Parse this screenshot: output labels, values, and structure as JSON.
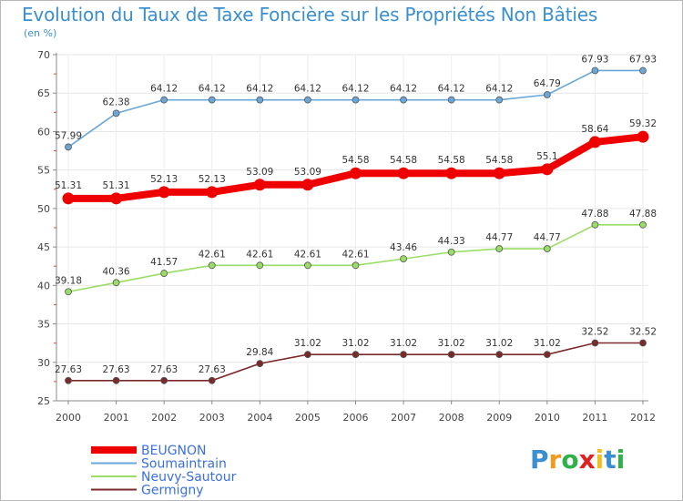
{
  "chart_data": {
    "type": "line",
    "title": "Evolution du Taux de Taxe Foncière sur les Propriétés Non Bâties",
    "ylabel": "(en %)",
    "xlabel": "",
    "ylim": [
      25,
      70
    ],
    "yticks": [
      25,
      30,
      35,
      40,
      45,
      50,
      55,
      60,
      65,
      70
    ],
    "x": [
      "2000",
      "2001",
      "2002",
      "2003",
      "2004",
      "2005",
      "2006",
      "2007",
      "2008",
      "2009",
      "2010",
      "2011",
      "2012"
    ],
    "series": [
      {
        "name": "BEUGNON",
        "color": "#ee0000",
        "emphasis": true,
        "values": [
          51.31,
          51.31,
          52.13,
          52.13,
          53.09,
          53.09,
          54.58,
          54.58,
          54.58,
          54.58,
          55.1,
          58.64,
          59.32
        ],
        "labels": [
          "51.31",
          "51.31",
          "52.13",
          "52.13",
          "53.09",
          "53.09",
          "54.58",
          "54.58",
          "54.58",
          "54.58",
          "55.1",
          "58.64",
          "59.32"
        ]
      },
      {
        "name": "Soumaintrain",
        "color": "#6aa6d6",
        "emphasis": false,
        "values": [
          57.99,
          62.38,
          64.12,
          64.12,
          64.12,
          64.12,
          64.12,
          64.12,
          64.12,
          64.12,
          64.79,
          67.93,
          67.93
        ],
        "labels": [
          "57.99",
          "62.38",
          "64.12",
          "64.12",
          "64.12",
          "64.12",
          "64.12",
          "64.12",
          "64.12",
          "64.12",
          "64.79",
          "67.93",
          "67.93"
        ]
      },
      {
        "name": "Neuvy-Sautour",
        "color": "#99dd66",
        "emphasis": false,
        "values": [
          39.18,
          40.36,
          41.57,
          42.61,
          42.61,
          42.61,
          42.61,
          43.46,
          44.33,
          44.77,
          44.77,
          47.88,
          47.88
        ],
        "labels": [
          "39.18",
          "40.36",
          "41.57",
          "42.61",
          "42.61",
          "42.61",
          "42.61",
          "43.46",
          "44.33",
          "44.77",
          "44.77",
          "47.88",
          "47.88"
        ]
      },
      {
        "name": "Germigny",
        "color": "#7a2a2a",
        "emphasis": false,
        "values": [
          27.63,
          27.63,
          27.63,
          27.63,
          29.84,
          31.02,
          31.02,
          31.02,
          31.02,
          31.02,
          31.02,
          32.52,
          32.52
        ],
        "labels": [
          "27.63",
          "27.63",
          "27.63",
          "27.63",
          "29.84",
          "31.02",
          "31.02",
          "31.02",
          "31.02",
          "31.02",
          "31.02",
          "32.52",
          "32.52"
        ]
      }
    ],
    "legend": "bottom-left",
    "grid": true
  },
  "logo": {
    "letters": [
      "P",
      "r",
      "o",
      "x",
      "i",
      "t",
      "i"
    ],
    "colors": [
      "#3a8fd0",
      "#f29a1c",
      "#2fb04a",
      "#e02020",
      "#f2c01c",
      "#3a8fd0",
      "#2fb04a"
    ]
  }
}
